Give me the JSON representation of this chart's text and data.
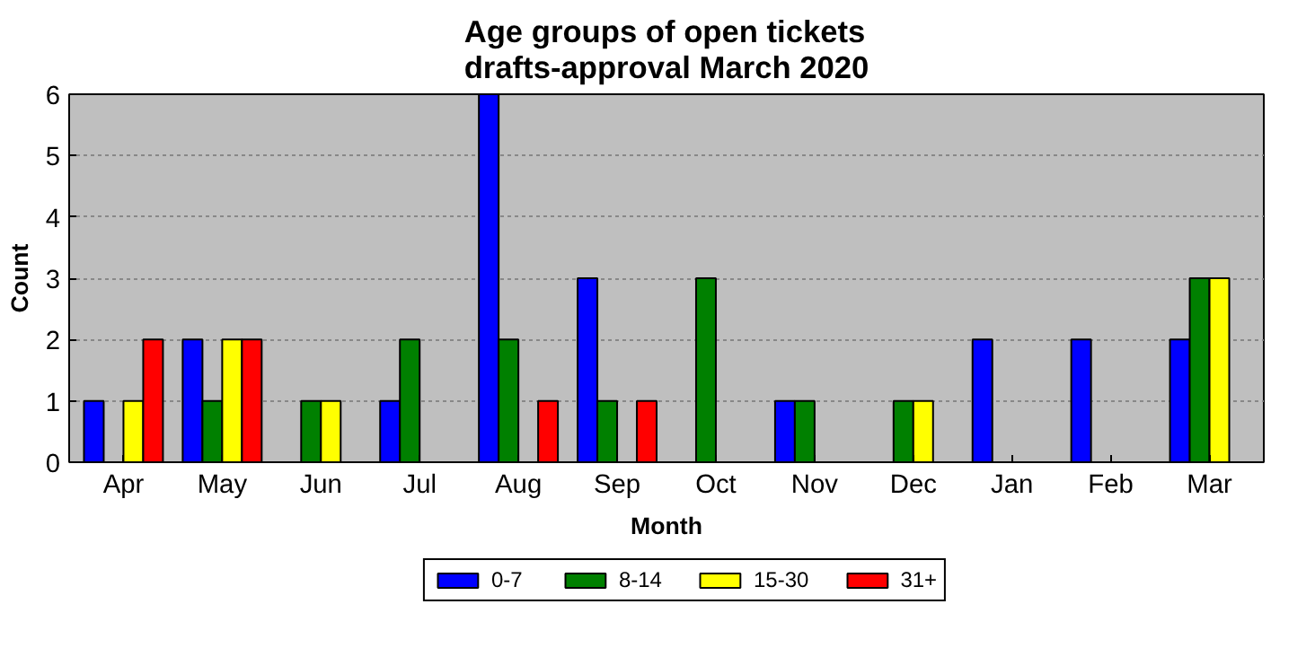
{
  "chart_data": {
    "type": "bar",
    "title": "Age groups of open tickets\ndrafts-approval March 2020",
    "xlabel": "Month",
    "ylabel": "Count",
    "categories": [
      "Apr",
      "May",
      "Jun",
      "Jul",
      "Aug",
      "Sep",
      "Oct",
      "Nov",
      "Dec",
      "Jan",
      "Feb",
      "Mar"
    ],
    "series": [
      {
        "name": "0-7",
        "color": "#0000ff",
        "values": [
          1,
          2,
          0,
          1,
          6,
          3,
          0,
          1,
          0,
          2,
          2,
          2
        ]
      },
      {
        "name": "8-14",
        "color": "#008000",
        "values": [
          0,
          1,
          1,
          2,
          2,
          1,
          3,
          1,
          1,
          0,
          0,
          3
        ]
      },
      {
        "name": "15-30",
        "color": "#ffff00",
        "values": [
          1,
          2,
          1,
          0,
          0,
          0,
          0,
          0,
          1,
          0,
          0,
          3
        ]
      },
      {
        "name": "31+",
        "color": "#ff0000",
        "values": [
          2,
          2,
          0,
          0,
          1,
          1,
          0,
          0,
          0,
          0,
          0,
          0
        ]
      }
    ],
    "ylim": [
      0,
      6
    ],
    "yticks": [
      0,
      1,
      2,
      3,
      4,
      5,
      6
    ],
    "grid": "y",
    "legend": "bottom"
  }
}
